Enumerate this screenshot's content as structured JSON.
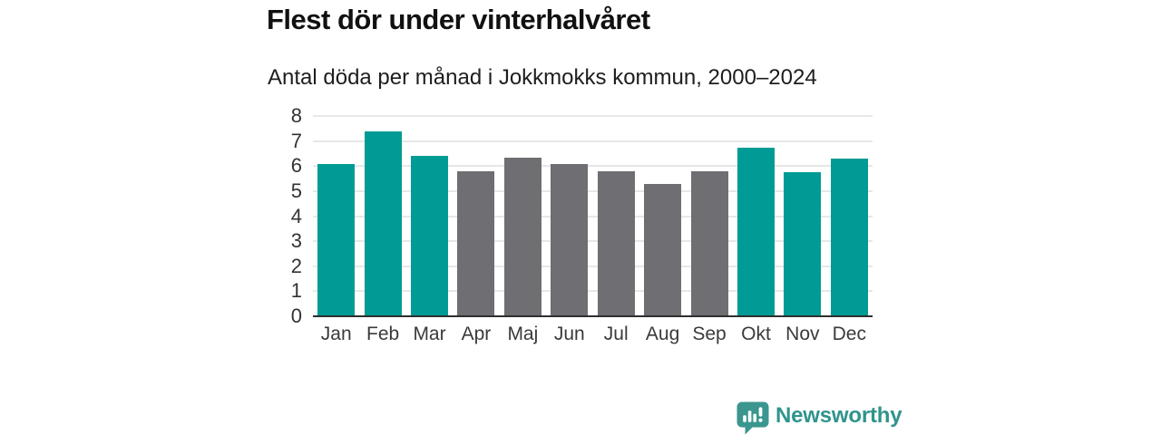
{
  "header": {
    "title": "Flest dör under vinterhalvåret",
    "subtitle": "Antal döda per månad i Jokkmokks kommun, 2000–2024"
  },
  "chart_data": {
    "type": "bar",
    "title": "Flest dör under vinterhalvåret",
    "subtitle": "Antal döda per månad i Jokkmokks kommun, 2000–2024",
    "categories": [
      "Jan",
      "Feb",
      "Mar",
      "Apr",
      "Maj",
      "Jun",
      "Jul",
      "Aug",
      "Sep",
      "Okt",
      "Nov",
      "Dec"
    ],
    "values": [
      6.1,
      7.4,
      6.4,
      5.8,
      6.35,
      6.1,
      5.8,
      5.3,
      5.8,
      6.75,
      5.75,
      6.3
    ],
    "bar_groups": [
      "winter",
      "winter",
      "winter",
      "summer",
      "summer",
      "summer",
      "summer",
      "summer",
      "summer",
      "winter",
      "winter",
      "winter"
    ],
    "group_colors": {
      "winter": "#009b94",
      "summer": "#6e6e73"
    },
    "xlabel": "",
    "ylabel": "",
    "ylim": [
      0,
      8
    ],
    "yticks": [
      0,
      1,
      2,
      3,
      4,
      5,
      6,
      7,
      8
    ],
    "grid": true,
    "legend": false,
    "gridline_color": "#e7e7e7",
    "baseline_color": "#2f2f2f"
  },
  "branding": {
    "name": "Newsworthy",
    "text_color": "#2f948c",
    "icon": "newsworthy-logo-icon",
    "icon_color": "#3a968f"
  }
}
